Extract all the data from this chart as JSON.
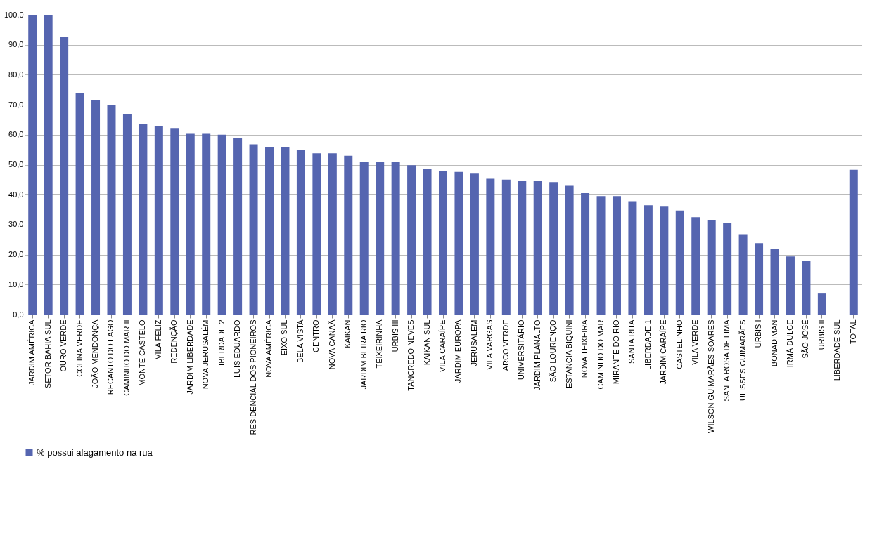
{
  "chart_data": {
    "type": "bar",
    "categories": [
      "JARDIM AMÉRICA",
      "SETOR BAHIA SUL",
      "OURO VERDE",
      "COLINA VERDE",
      "JOÃO MENDONÇA",
      "RECANTO DO LAGO",
      "CAMINHO DO MAR II",
      "MONTE CASTELO",
      "VILA FELIZ",
      "REDENÇÃO",
      "JARDIM LIBERDADE",
      "NOVA JERUSALÉM",
      "LIBERDADE 2",
      "LUIS EDUARDO",
      "RESIDENCIAL DOS PIONEIROS",
      "NOVA AMÉRICA",
      "EIXO SUL",
      "BELA VISTA",
      "CENTRO",
      "NOVA CANAÃ",
      "KAIKAN",
      "JARDIM BEIRA RIO",
      "TEIXEIRINHA",
      "URBIS III",
      "TANCREDO NEVES",
      "KAIKAN SUL",
      "VILA CARAÍPE",
      "JARDIM EUROPA",
      "JERUSALÉM",
      "VILA VARGAS",
      "ARCO VERDE",
      "UNIVERSITÁRIO",
      "JARDIM PLANALTO",
      "SÃO LOURENÇO",
      "ESTANCIA BIQUINI",
      "NOVA TEIXEIRA",
      "CAMINHO DO MAR",
      "MIRANTE DO RIO",
      "SANTA RITA",
      "LIBERDADE 1",
      "JARDIM CARAÍPE",
      "CASTELINHO",
      "VILA VERDE",
      "WILSON GUIMARÃES SOARES",
      "SANTA ROSA DE LIMA",
      "ULISSES GUIMARÃES",
      "URBIS I",
      "BONADIMAN",
      "IRMÃ DULCE",
      "SÃO JOSÉ",
      "URBIS II",
      "LIBERDADE SUL",
      "TOTAL"
    ],
    "series": [
      {
        "name": "% possui alagamento na rua",
        "color": "#5565b0",
        "values": [
          100,
          100,
          92.5,
          74,
          71.5,
          70,
          67,
          63.5,
          62.8,
          62,
          60.3,
          60.3,
          60,
          58.8,
          56.8,
          56,
          56,
          54.8,
          53.8,
          53.8,
          53,
          50.8,
          50.8,
          50.8,
          49.8,
          48.6,
          47.9,
          47.6,
          47,
          45.3,
          45,
          44.5,
          44.5,
          44.2,
          43,
          40.5,
          39.5,
          39.5,
          37.8,
          36.5,
          36,
          34.7,
          32.5,
          31.5,
          30.5,
          26.8,
          23.8,
          21.8,
          19.4,
          17.8,
          7,
          0,
          48.3
        ]
      }
    ],
    "ylim": [
      0,
      100
    ],
    "yticks": [
      {
        "value": 0,
        "label": "0,0"
      },
      {
        "value": 10,
        "label": "10,0"
      },
      {
        "value": 20,
        "label": "20,0"
      },
      {
        "value": 30,
        "label": "30,0"
      },
      {
        "value": 40,
        "label": "40,0"
      },
      {
        "value": 50,
        "label": "50,0"
      },
      {
        "value": 60,
        "label": "60,0"
      },
      {
        "value": 70,
        "label": "70,0"
      },
      {
        "value": 80,
        "label": "80,0"
      },
      {
        "value": 90,
        "label": "90,0"
      },
      {
        "value": 100,
        "label": "100,0"
      }
    ],
    "grid": "y",
    "legend": "bottom"
  }
}
